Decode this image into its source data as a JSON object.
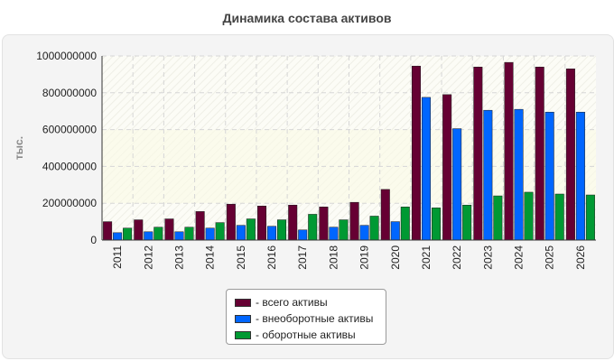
{
  "chart_data": {
    "type": "bar",
    "title": "Динамика состава активов",
    "xlabel": "",
    "ylabel": "тыс.",
    "ylim": [
      0,
      1000000000
    ],
    "yticks": [
      0,
      200000000,
      400000000,
      600000000,
      800000000,
      1000000000
    ],
    "categories": [
      "2011",
      "2012",
      "2013",
      "2014",
      "2015",
      "2016",
      "2017",
      "2018",
      "2019",
      "2020",
      "2021",
      "2022",
      "2023",
      "2024",
      "2025",
      "2026"
    ],
    "series": [
      {
        "name": "всего активы",
        "color": "#660033",
        "values": [
          100000000,
          110000000,
          115000000,
          155000000,
          195000000,
          185000000,
          190000000,
          180000000,
          205000000,
          275000000,
          945000000,
          790000000,
          940000000,
          965000000,
          940000000,
          930000000
        ]
      },
      {
        "name": "внеоборотные активы",
        "color": "#0066ff",
        "values": [
          40000000,
          45000000,
          45000000,
          65000000,
          80000000,
          75000000,
          55000000,
          70000000,
          80000000,
          100000000,
          775000000,
          605000000,
          705000000,
          710000000,
          695000000,
          695000000
        ]
      },
      {
        "name": "оборотные активы",
        "color": "#009933",
        "values": [
          65000000,
          70000000,
          70000000,
          95000000,
          115000000,
          110000000,
          140000000,
          110000000,
          130000000,
          180000000,
          175000000,
          190000000,
          240000000,
          260000000,
          250000000,
          245000000
        ]
      }
    ],
    "grid": true,
    "legend_position": "bottom-center"
  },
  "legend_prefix": "- "
}
